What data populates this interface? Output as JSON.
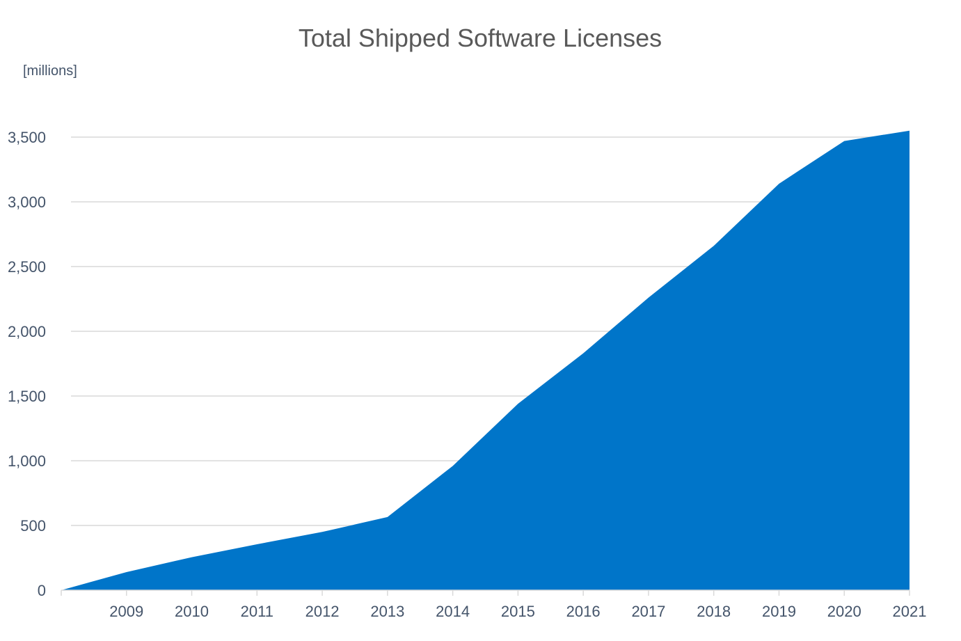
{
  "chart_data": {
    "type": "area",
    "title": "Total Shipped Software Licenses",
    "ylabel": "[millions]",
    "xlabel": "",
    "categories": [
      "",
      "2009",
      "2010",
      "2011",
      "2012",
      "2013",
      "2014",
      "2015",
      "2016",
      "2017",
      "2018",
      "2019",
      "2020",
      "2021"
    ],
    "series": [
      {
        "values": [
          0,
          140,
          255,
          355,
          450,
          565,
          960,
          1440,
          1830,
          2260,
          2660,
          3140,
          3470,
          3550
        ]
      }
    ],
    "ylim": [
      0,
      3500
    ],
    "yticks": [
      {
        "value": 0,
        "label": "0"
      },
      {
        "value": 500,
        "label": "500"
      },
      {
        "value": 1000,
        "label": "1,000"
      },
      {
        "value": 1500,
        "label": "1,500"
      },
      {
        "value": 2000,
        "label": "2,000"
      },
      {
        "value": 2500,
        "label": "2,500"
      },
      {
        "value": 3000,
        "label": "3,000"
      },
      {
        "value": 3500,
        "label": "3,500"
      }
    ],
    "grid": true,
    "legend": "none",
    "colors": {
      "area": "#0075c9",
      "grid": "#d9d9d9",
      "title": "#595959",
      "tick": "#44546a"
    }
  }
}
